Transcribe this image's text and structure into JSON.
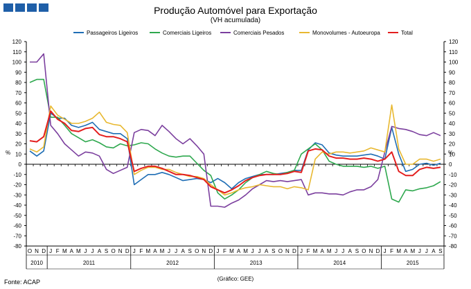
{
  "header": {
    "title": "Produção Automóvel para Exportação",
    "subtitle": "(VH acumulada)"
  },
  "footer": {
    "source": "Fonte: ACAP",
    "credit": "(Gráfico: GEE)"
  },
  "chart_data": {
    "type": "line",
    "ylabel_left": "%",
    "ylabel_right": "%",
    "ylim": [
      -80,
      120
    ],
    "ytick_step": 10,
    "grid": false,
    "legend_position": "top",
    "month_labels": [
      "O",
      "N",
      "D",
      "J",
      "F",
      "M",
      "A",
      "M",
      "J",
      "J",
      "A",
      "S",
      "O",
      "N",
      "D",
      "J",
      "F",
      "M",
      "A",
      "M",
      "J",
      "J",
      "A",
      "S",
      "O",
      "N",
      "D",
      "J",
      "F",
      "M",
      "A",
      "M",
      "J",
      "J",
      "A",
      "S",
      "O",
      "N",
      "D",
      "J",
      "F",
      "M",
      "A",
      "M",
      "J",
      "J",
      "A",
      "S",
      "O",
      "N",
      "D",
      "J",
      "F",
      "M",
      "A",
      "M",
      "J",
      "J",
      "A",
      "S"
    ],
    "year_labels": [
      {
        "label": "2010",
        "start": 0,
        "end": 2
      },
      {
        "label": "2011",
        "start": 3,
        "end": 14
      },
      {
        "label": "2012",
        "start": 15,
        "end": 26
      },
      {
        "label": "2013",
        "start": 27,
        "end": 38
      },
      {
        "label": "2014",
        "start": 39,
        "end": 50
      },
      {
        "label": "2015",
        "start": 51,
        "end": 59
      }
    ],
    "series": [
      {
        "name": "Passageiros Ligeiros",
        "color": "#1f6eb5",
        "values": [
          13,
          8,
          13,
          50,
          45,
          45,
          38,
          36,
          38,
          41,
          34,
          32,
          30,
          30,
          25,
          -20,
          -15,
          -10,
          -10,
          -8,
          -10,
          -13,
          -16,
          -15,
          -14,
          -15,
          -18,
          -14,
          -18,
          -24,
          -18,
          -14,
          -12,
          -10,
          -10,
          -10,
          -9,
          -8,
          -6,
          -6,
          14,
          21,
          19,
          11,
          9,
          8,
          8,
          8,
          9,
          10,
          8,
          5,
          36,
          10,
          -7,
          -5,
          0,
          1,
          -1,
          1
        ]
      },
      {
        "name": "Comerciais Ligeiros",
        "color": "#2ea84e",
        "values": [
          80,
          83,
          83,
          46,
          46,
          38,
          30,
          26,
          22,
          24,
          21,
          17,
          16,
          20,
          18,
          19,
          21,
          20,
          15,
          11,
          8,
          7,
          8,
          8,
          1,
          -6,
          -11,
          -28,
          -34,
          -30,
          -25,
          -18,
          -13,
          -10,
          -7,
          -9,
          -10,
          -8,
          -6,
          10,
          15,
          20,
          14,
          3,
          0,
          -2,
          -2,
          -2,
          -3,
          -2,
          -4,
          -2,
          -34,
          -37,
          -25,
          -26,
          -24,
          -23,
          -21,
          -17
        ]
      },
      {
        "name": "Comerciais Pesados",
        "color": "#7b3f9e",
        "values": [
          100,
          100,
          108,
          38,
          30,
          20,
          14,
          8,
          12,
          11,
          8,
          -5,
          -9,
          -6,
          -3,
          31,
          34,
          33,
          28,
          38,
          32,
          25,
          20,
          25,
          18,
          10,
          -41,
          -41,
          -42,
          -38,
          -35,
          -30,
          -24,
          -20,
          -16,
          -17,
          -16,
          -17,
          -16,
          -15,
          -30,
          -28,
          -28,
          -29,
          -29,
          -30,
          -27,
          -25,
          -25,
          -22,
          -15,
          12,
          37,
          35,
          34,
          32,
          29,
          28,
          31,
          28
        ]
      },
      {
        "name": "Monovolumes - Autoeuropa",
        "color": "#e8b830",
        "values": [
          15,
          12,
          17,
          57,
          48,
          44,
          40,
          40,
          42,
          45,
          51,
          41,
          39,
          38,
          31,
          -10,
          -6,
          -3,
          -3,
          -5,
          -5,
          -8,
          -10,
          -12,
          -12,
          -14,
          -20,
          -25,
          -30,
          -28,
          -25,
          -23,
          -22,
          -20,
          -21,
          -22,
          -22,
          -24,
          -22,
          -23,
          -25,
          5,
          12,
          10,
          12,
          12,
          11,
          12,
          13,
          16,
          14,
          12,
          58,
          15,
          0,
          0,
          5,
          5,
          3,
          5
        ]
      },
      {
        "name": "Total",
        "color": "#e31e1e",
        "values": [
          23,
          22,
          27,
          52,
          44,
          40,
          33,
          32,
          35,
          36,
          29,
          27,
          27,
          25,
          22,
          -7,
          -4,
          -2,
          -2,
          -4,
          -7,
          -10,
          -10,
          -11,
          -13,
          -15,
          -22,
          -25,
          -28,
          -25,
          -21,
          -16,
          -13,
          -11,
          -10,
          -10,
          -10,
          -9,
          -7,
          -8,
          13,
          15,
          14,
          8,
          6,
          6,
          5,
          5,
          6,
          5,
          3,
          5,
          12,
          -7,
          -11,
          -11,
          -5,
          -3,
          -4,
          -3
        ]
      }
    ]
  }
}
